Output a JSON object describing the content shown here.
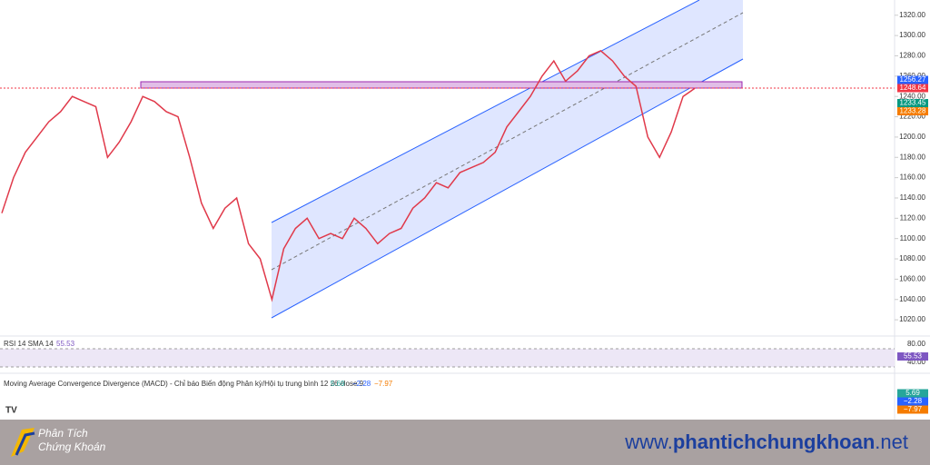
{
  "chart_data": {
    "type": "line",
    "color": "#e0394a",
    "values": [
      1125,
      1160,
      1185,
      1200,
      1215,
      1225,
      1240,
      1235,
      1230,
      1180,
      1195,
      1215,
      1240,
      1235,
      1225,
      1220,
      1180,
      1135,
      1110,
      1130,
      1140,
      1095,
      1080,
      1040,
      1090,
      1110,
      1120,
      1100,
      1105,
      1100,
      1120,
      1110,
      1095,
      1105,
      1110,
      1130,
      1140,
      1155,
      1150,
      1165,
      1170,
      1175,
      1185,
      1210,
      1225,
      1240,
      1260,
      1275,
      1255,
      1265,
      1280,
      1285,
      1275,
      1260,
      1250,
      1200,
      1180,
      1205,
      1240,
      1248
    ],
    "ylim": [
      1004,
      1335
    ],
    "yticks": [
      {
        "value": 1020,
        "label": "1020.00"
      },
      {
        "value": 1040,
        "label": "1040.00"
      },
      {
        "value": 1060,
        "label": "1060.00"
      },
      {
        "value": 1080,
        "label": "1080.00"
      },
      {
        "value": 1100,
        "label": "1100.00"
      },
      {
        "value": 1120,
        "label": "1120.00"
      },
      {
        "value": 1140,
        "label": "1140.00"
      },
      {
        "value": 1160,
        "label": "1160.00"
      },
      {
        "value": 1180,
        "label": "1180.00"
      },
      {
        "value": 1200,
        "label": "1200.00"
      },
      {
        "value": 1220,
        "label": "1220.00"
      },
      {
        "value": 1240,
        "label": "1240.00"
      },
      {
        "value": 1260,
        "label": "1260.00"
      },
      {
        "value": 1280,
        "label": "1280.00"
      },
      {
        "value": 1300,
        "label": "1300.00"
      },
      {
        "value": 1320,
        "label": "1320.00"
      }
    ],
    "price_tags": [
      {
        "value": 1256.27,
        "color": "#2962ff"
      },
      {
        "value": 1248.64,
        "color": "#f23645"
      },
      {
        "value": 1233.45,
        "color": "#089981"
      },
      {
        "value": 1233.28,
        "color": "#f57c00"
      }
    ],
    "rsi": {
      "title": "RSI 14 SMA 14",
      "value": 55.53,
      "yticks": [
        {
          "value": 80,
          "label": "80.00"
        },
        {
          "value": 40,
          "label": "40.00"
        }
      ]
    },
    "macd": {
      "title": "Moving Average Convergence Divergence (MACD) - Chỉ báo Biến động Phân kỳ/Hội tụ trung bình 12 26 close 9",
      "values": [
        5.69,
        -2.28,
        -7.97
      ],
      "value_labels": [
        "5.69",
        "−2.28",
        "−7.97"
      ],
      "colors": [
        "#26a69a",
        "#2962ff",
        "#f57c00"
      ]
    }
  },
  "footer": {
    "brand_line1": "Phân Tích",
    "brand_line2": "Chứng Khoán",
    "site_prefix": "www.",
    "site_main": "phantichchungkhoan",
    "site_suffix": ".net"
  }
}
